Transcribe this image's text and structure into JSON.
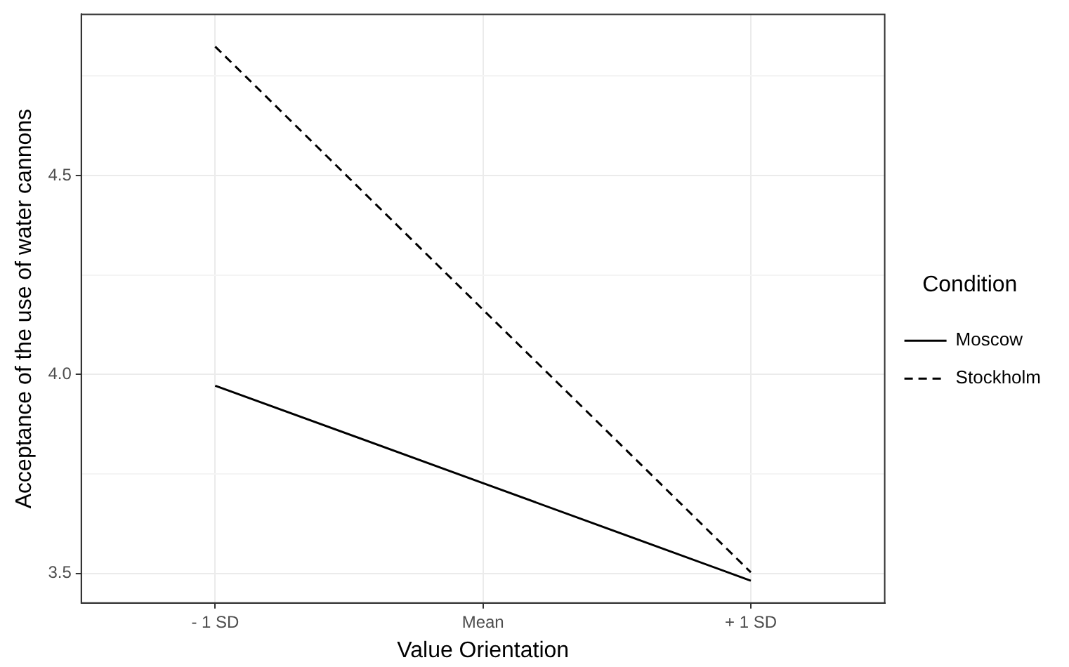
{
  "chart_data": {
    "type": "line",
    "xlabel": "Value Orientation",
    "ylabel": "Acceptance of the use of water cannons",
    "legend_title": "Condition",
    "categories": [
      "- 1 SD",
      "Mean",
      "+ 1 SD"
    ],
    "series": [
      {
        "name": "Moscow",
        "color": "#000000",
        "values": [
          3.972,
          3.727,
          3.482
        ],
        "line_style": "solid"
      },
      {
        "name": "Stockholm",
        "color": "#000000",
        "values": [
          4.824,
          4.163,
          3.503
        ],
        "line_style": "dashed"
      }
    ],
    "ylim": [
      3.426,
      4.905
    ],
    "yticks": [
      {
        "value": 3.5,
        "label": "3.5"
      },
      {
        "value": 3.75,
        "label": null
      },
      {
        "value": 4.0,
        "label": "4.0"
      },
      {
        "value": 4.25,
        "label": null
      },
      {
        "value": 4.5,
        "label": "4.5"
      },
      {
        "value": 4.75,
        "label": null
      }
    ],
    "grid": true,
    "legend": "right",
    "marker": "none"
  }
}
